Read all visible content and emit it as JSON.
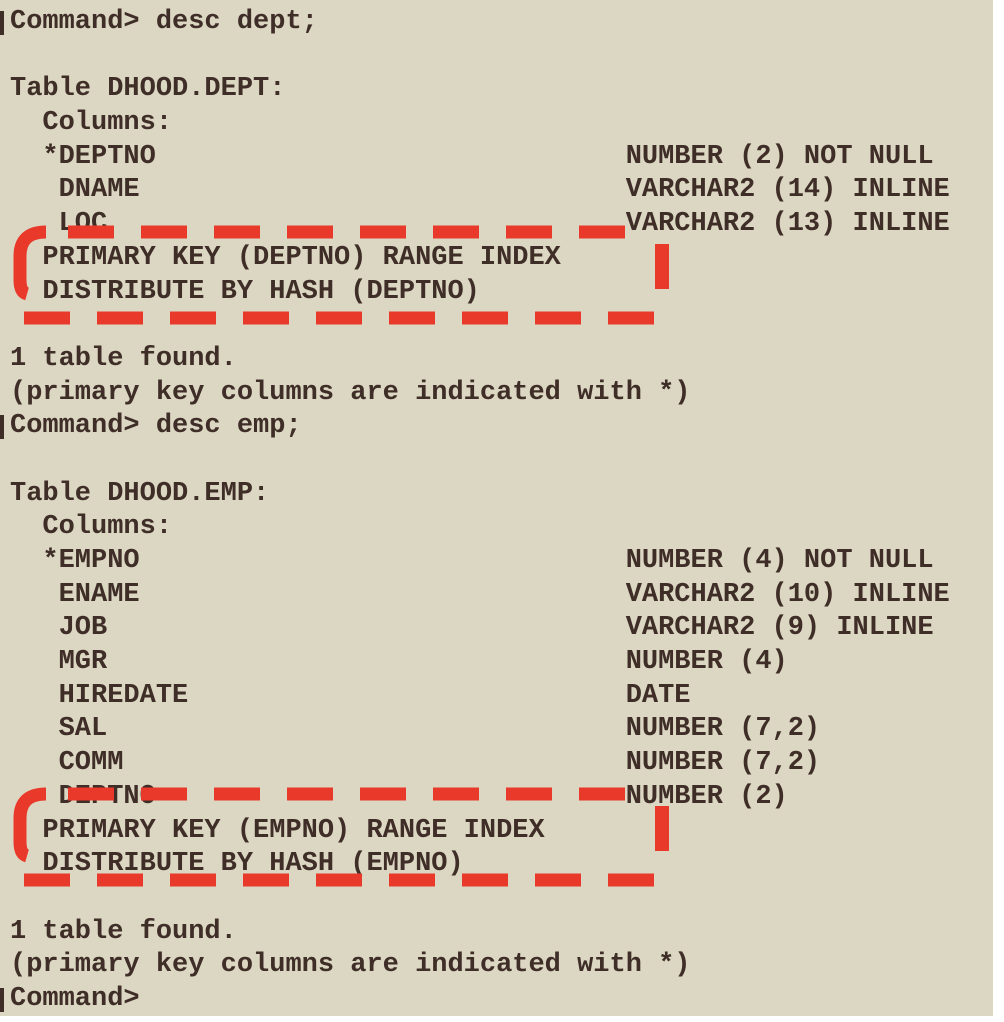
{
  "meta": {
    "app": "ttIsql terminal session",
    "background_color": "#dcd7c2",
    "text_color": "#3f2d28",
    "annotation_color": "#e8392b"
  },
  "terminal": {
    "prompt": "Command>",
    "lines": [
      {
        "text": "Command> desc dept;",
        "prompt": true
      },
      {
        "text": ""
      },
      {
        "text": "Table DHOOD.DEPT:"
      },
      {
        "text": "  Columns:"
      },
      {
        "text": "  *DEPTNO                             NUMBER (2) NOT NULL"
      },
      {
        "text": "   DNAME                              VARCHAR2 (14) INLINE"
      },
      {
        "text": "   LOC                                VARCHAR2 (13) INLINE"
      },
      {
        "text": "  PRIMARY KEY (DEPTNO) RANGE INDEX"
      },
      {
        "text": "  DISTRIBUTE BY HASH (DEPTNO)"
      },
      {
        "text": ""
      },
      {
        "text": "1 table found."
      },
      {
        "text": "(primary key columns are indicated with *)"
      },
      {
        "text": "Command> desc emp;",
        "prompt": true
      },
      {
        "text": ""
      },
      {
        "text": "Table DHOOD.EMP:"
      },
      {
        "text": "  Columns:"
      },
      {
        "text": "  *EMPNO                              NUMBER (4) NOT NULL"
      },
      {
        "text": "   ENAME                              VARCHAR2 (10) INLINE"
      },
      {
        "text": "   JOB                                VARCHAR2 (9) INLINE"
      },
      {
        "text": "   MGR                                NUMBER (4)"
      },
      {
        "text": "   HIREDATE                           DATE"
      },
      {
        "text": "   SAL                                NUMBER (7,2)"
      },
      {
        "text": "   COMM                               NUMBER (7,2)"
      },
      {
        "text": "   DEPTNO                             NUMBER (2)"
      },
      {
        "text": "  PRIMARY KEY (EMPNO) RANGE INDEX"
      },
      {
        "text": "  DISTRIBUTE BY HASH (EMPNO)"
      },
      {
        "text": ""
      },
      {
        "text": "1 table found."
      },
      {
        "text": "(primary key columns are indicated with *)"
      },
      {
        "text": "Command>",
        "prompt": true
      }
    ]
  },
  "annotations": [
    {
      "name": "dept-keys-highlight",
      "style": "red dashed hand-drawn box",
      "highlights": "PRIMARY KEY (DEPTNO) RANGE INDEX / DISTRIBUTE BY HASH (DEPTNO)"
    },
    {
      "name": "emp-keys-highlight",
      "style": "red dashed hand-drawn box",
      "highlights": "PRIMARY KEY (EMPNO) RANGE INDEX / DISTRIBUTE BY HASH (EMPNO)"
    }
  ]
}
